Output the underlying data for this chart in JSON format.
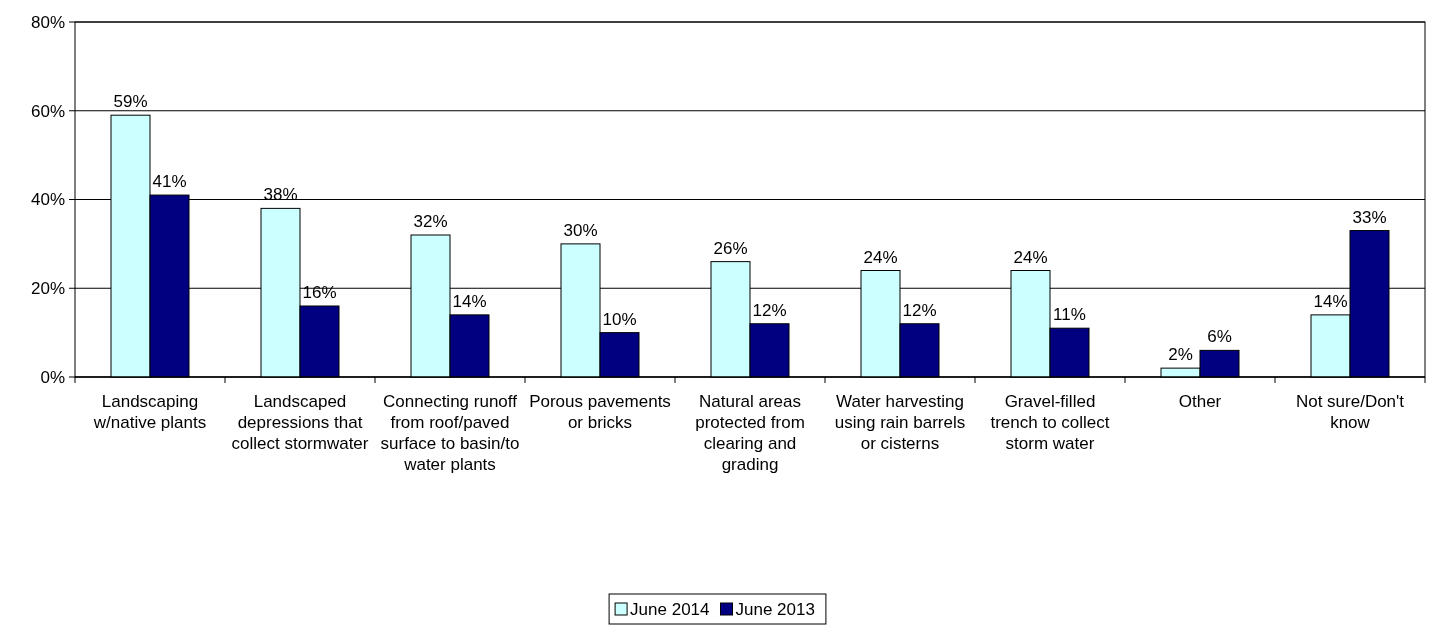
{
  "chart_data": {
    "type": "bar",
    "categories": [
      "Landscaping w/native plants",
      "Landscaped depressions that collect stormwater",
      "Connecting runoff from roof/paved surface to basin/to water plants",
      "Porous pavements or bricks",
      "Natural areas protected from clearing and grading",
      "Water harvesting using rain barrels or cisterns",
      "Gravel-filled trench to collect storm water",
      "Other",
      "Not sure/Don't know"
    ],
    "series": [
      {
        "name": "June 2014",
        "color": "#ccffff",
        "values": [
          59,
          38,
          32,
          30,
          26,
          24,
          24,
          2,
          14
        ],
        "value_labels": [
          "59%",
          "38%",
          "32%",
          "30%",
          "26%",
          "24%",
          "24%",
          "2%",
          "14%"
        ]
      },
      {
        "name": "June 2013",
        "color": "#000080",
        "values": [
          41,
          16,
          14,
          10,
          12,
          12,
          11,
          6,
          33
        ],
        "value_labels": [
          "41%",
          "16%",
          "14%",
          "10%",
          "12%",
          "12%",
          "11%",
          "6%",
          "33%"
        ]
      }
    ],
    "ylim": [
      0,
      80
    ],
    "yticks": [
      {
        "value": 0,
        "label": "0%"
      },
      {
        "value": 20,
        "label": "20%"
      },
      {
        "value": 40,
        "label": "40%"
      },
      {
        "value": 60,
        "label": "60%"
      },
      {
        "value": 80,
        "label": "80%"
      }
    ],
    "grid": "y",
    "legend": "bottom"
  }
}
